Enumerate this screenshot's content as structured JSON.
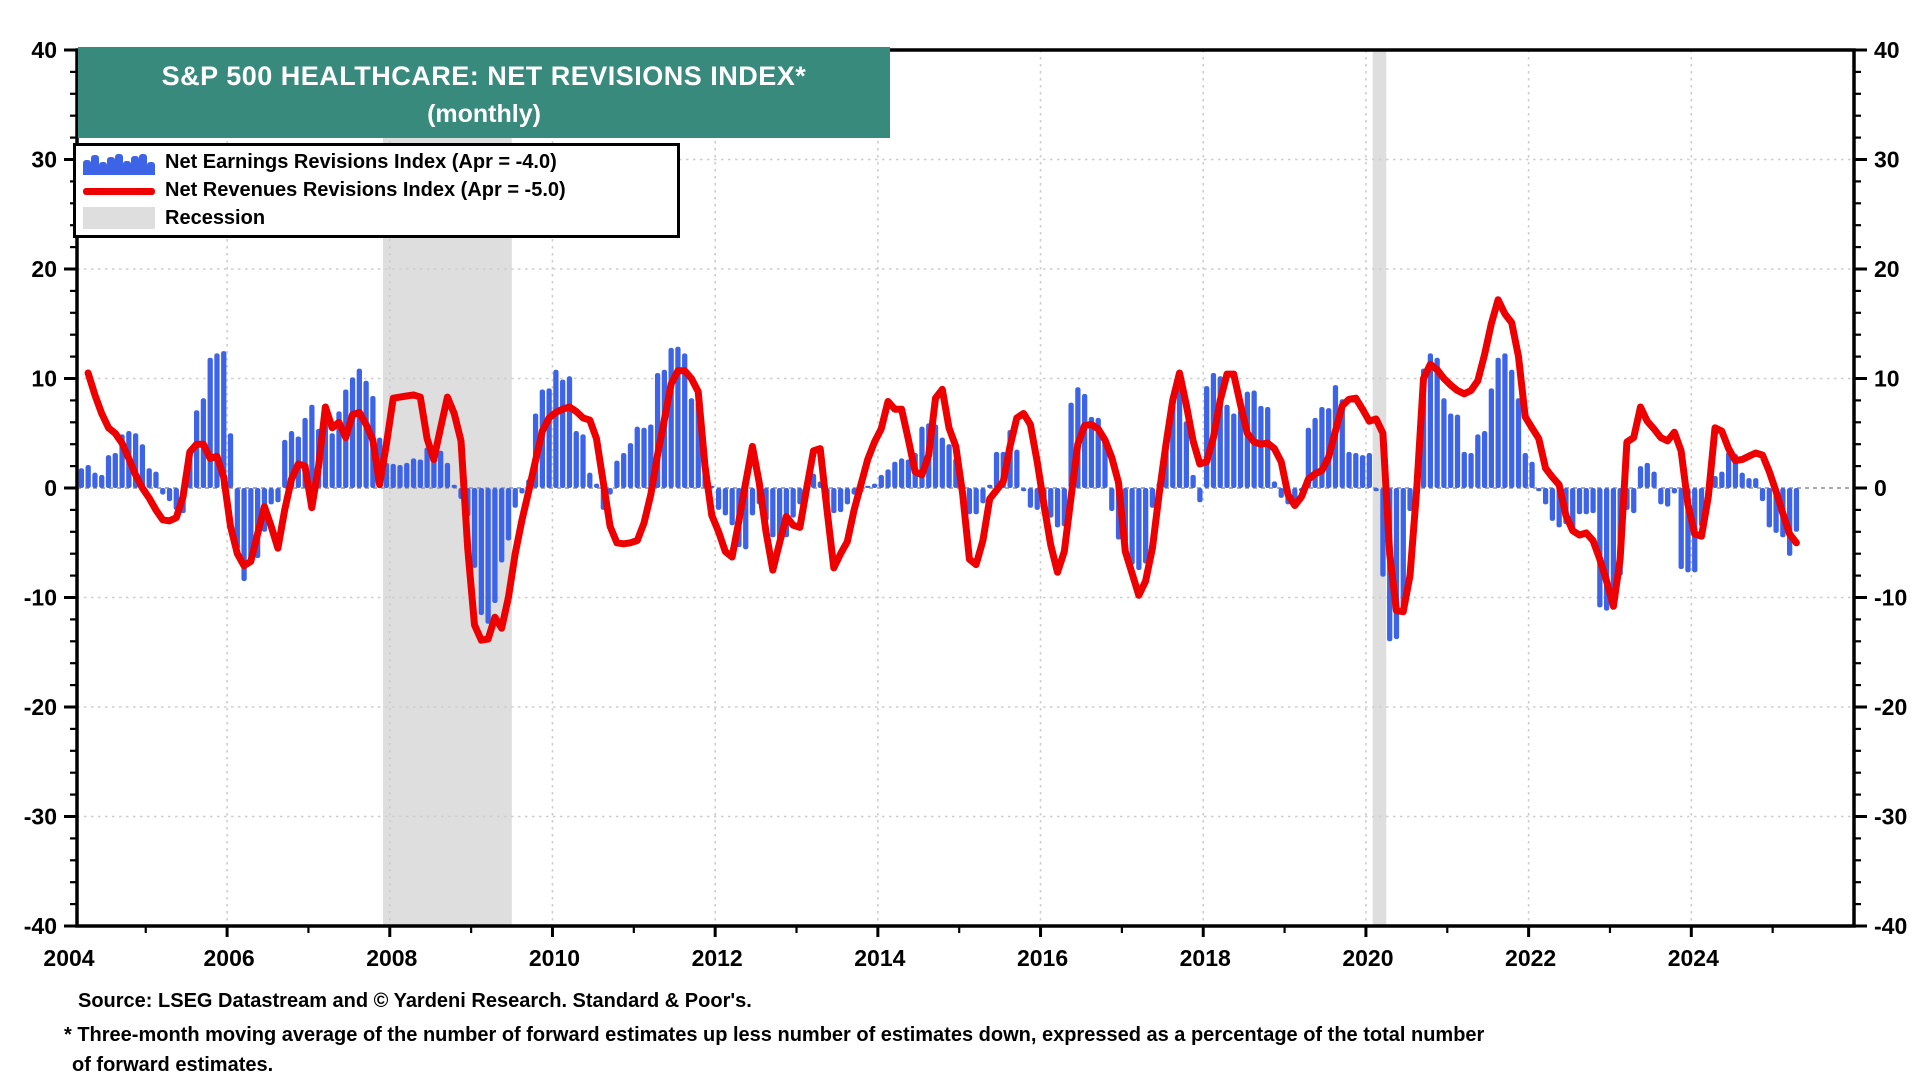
{
  "chart_data": {
    "type": "bar+line",
    "title": "S&P 500 HEALTHCARE: NET REVISIONS INDEX*",
    "subtitle": "(monthly)",
    "start_month": "2004-01",
    "end_month": "2025-04",
    "colors": {
      "bars": "#3D63E6",
      "line": "#EF0000",
      "recession_band": "#DEDEDE",
      "title_bg": "#388A7D",
      "grid": "#CDCDCD",
      "zero_line": "#A0A0A0",
      "frame": "#000000"
    },
    "axis": {
      "ylim": [
        -40,
        40
      ],
      "ytick_labels": [
        40,
        30,
        20,
        10,
        0,
        -10,
        -20,
        -30,
        -40
      ],
      "yminor_step": 2,
      "ymajor_step": 10,
      "xlabel_years": [
        2004,
        2006,
        2008,
        2010,
        2012,
        2014,
        2016,
        2018,
        2020,
        2022,
        2024
      ],
      "xgrid_years": [
        2006,
        2008,
        2010,
        2012,
        2014,
        2016,
        2018,
        2020,
        2022,
        2024
      ],
      "months_domain": 264
    },
    "legend": [
      {
        "label": "Net Earnings Revisions Index (Apr  = -4.0)",
        "type": "bar",
        "color": "#3D63E6"
      },
      {
        "label": "Net Revenues Revisions Index (Apr  = -5.0)",
        "type": "line",
        "color": "#EF0000"
      },
      {
        "label": "Recession",
        "type": "band",
        "color": "#DEDEDE"
      }
    ],
    "latest": {
      "month": "Apr",
      "earnings": -4.0,
      "revenues": -5.0
    },
    "recession_bands_months": [
      [
        47,
        66
      ],
      [
        193,
        195
      ]
    ],
    "series": {
      "earnings_monthly": [
        null,
        null,
        1.8,
        2.1,
        1.4,
        1.2,
        3.0,
        3.2,
        4.9,
        5.2,
        5.0,
        4.0,
        1.8,
        1.5,
        -0.6,
        -1.2,
        -2.0,
        -2.3,
        2.9,
        7.1,
        8.2,
        11.9,
        12.3,
        12.5,
        5.0,
        -5.6,
        -8.5,
        -6.6,
        -6.4,
        -4.0,
        -1.5,
        -1.3,
        4.4,
        5.2,
        4.7,
        6.4,
        7.6,
        5.4,
        6.3,
        5.0,
        7.0,
        9.0,
        10.1,
        10.9,
        9.8,
        8.4,
        4.6,
        2.3,
        2.2,
        2.1,
        2.3,
        2.7,
        2.6,
        3.7,
        3.5,
        3.4,
        2.3,
        0.3,
        -1.0,
        -2.6,
        -7.3,
        -11.6,
        -12.4,
        -10.5,
        -6.8,
        -4.8,
        -1.8,
        -0.5,
        0.8,
        6.8,
        9.0,
        9.1,
        10.8,
        9.9,
        10.2,
        5.2,
        4.9,
        1.4,
        0.4,
        -2.0,
        -0.6,
        2.5,
        3.2,
        4.1,
        5.6,
        5.5,
        5.8,
        10.5,
        10.8,
        12.8,
        12.9,
        12.3,
        8.2,
        7.9,
        2.7,
        0.2,
        -2.0,
        -2.5,
        -3.4,
        -5.4,
        -5.6,
        -2.5,
        -1.5,
        -3.0,
        -4.5,
        -4.8,
        -4.5,
        -2.7,
        -1.5,
        0.5,
        1.3,
        0.6,
        -1.8,
        -2.3,
        -2.2,
        -1.5,
        -0.6,
        -0.4,
        0.2,
        0.4,
        1.2,
        1.7,
        2.4,
        2.7,
        2.6,
        3.2,
        5.6,
        5.9,
        5.8,
        4.6,
        4.0,
        2.7,
        -1.2,
        -2.4,
        -2.4,
        -1.4,
        0.3,
        3.3,
        3.3,
        5.3,
        3.5,
        -0.3,
        -1.8,
        -2.0,
        -2.3,
        -2.7,
        -3.6,
        -3.5,
        7.8,
        9.2,
        8.6,
        6.5,
        6.4,
        4.3,
        -2.1,
        -4.7,
        -5.0,
        -7.0,
        -7.5,
        -6.9,
        -1.8,
        0.5,
        3.5,
        8.0,
        10.0,
        6.1,
        1.2,
        -1.3,
        9.3,
        10.5,
        10.2,
        7.6,
        6.8,
        7.1,
        8.8,
        8.9,
        7.5,
        7.4,
        0.6,
        -0.9,
        -1.5,
        -1.4,
        -0.3,
        5.5,
        6.4,
        7.4,
        7.3,
        9.4,
        8.1,
        3.3,
        3.2,
        3.0,
        3.2,
        -0.3,
        -8.1,
        -14.0,
        -13.8,
        -11.5,
        -2.1,
        0.3,
        10.9,
        12.3,
        11.9,
        8.2,
        6.8,
        6.7,
        3.3,
        3.2,
        4.9,
        5.2,
        9.1,
        11.9,
        12.3,
        10.8,
        8.2,
        3.2,
        2.4,
        -0.3,
        -1.5,
        -3.0,
        -3.6,
        -3.3,
        -4.0,
        -2.4,
        -2.4,
        -2.3,
        -10.9,
        -11.2,
        -11.0,
        -8.0,
        -2.0,
        -2.3,
        2.0,
        2.3,
        1.5,
        -1.5,
        -1.7,
        -0.5,
        -7.4,
        -7.7,
        -7.7,
        -3.5,
        -0.5,
        1.1,
        1.5,
        3.3,
        3.1,
        1.4,
        0.9,
        0.9,
        -1.2,
        -3.6,
        -4.1,
        -4.5,
        -6.2,
        -4.0
      ],
      "revenues_monthly": [
        null,
        null,
        null,
        10.5,
        8.5,
        6.8,
        5.5,
        5.0,
        4.1,
        2.7,
        1.2,
        0.0,
        -0.9,
        -2.0,
        -2.9,
        -3.0,
        -2.7,
        -0.8,
        3.3,
        4.0,
        4.0,
        2.7,
        2.9,
        1.0,
        -3.5,
        -6.0,
        -7.1,
        -6.7,
        -4.2,
        -1.7,
        -3.5,
        -5.5,
        -2.0,
        0.8,
        2.2,
        2.0,
        -1.8,
        2.0,
        7.4,
        5.5,
        6.0,
        4.6,
        6.7,
        6.9,
        5.8,
        4.4,
        0.3,
        4.0,
        8.2,
        8.3,
        8.4,
        8.5,
        8.3,
        4.5,
        2.6,
        5.5,
        8.3,
        6.8,
        4.3,
        -5.5,
        -12.5,
        -13.9,
        -13.8,
        -11.8,
        -12.8,
        -10.0,
        -6.0,
        -2.9,
        -0.3,
        2.5,
        5.2,
        6.4,
        6.9,
        7.2,
        7.4,
        7.0,
        6.4,
        6.2,
        4.5,
        0.5,
        -3.5,
        -5.0,
        -5.1,
        -5.0,
        -4.8,
        -3.2,
        -0.6,
        3.0,
        6.2,
        9.5,
        10.7,
        10.7,
        10.0,
        8.8,
        2.0,
        -2.5,
        -4.0,
        -5.8,
        -6.3,
        -3.0,
        0.5,
        3.8,
        0.5,
        -4.0,
        -7.5,
        -5.0,
        -2.6,
        -3.4,
        -3.6,
        0.0,
        3.4,
        3.6,
        -2.0,
        -7.3,
        -6.0,
        -4.9,
        -2.0,
        0.3,
        2.6,
        4.2,
        5.4,
        7.9,
        7.2,
        7.2,
        4.4,
        1.5,
        1.2,
        3.0,
        8.2,
        9.0,
        5.5,
        3.8,
        -0.5,
        -6.5,
        -7.0,
        -4.8,
        -1.0,
        -0.2,
        0.6,
        3.8,
        6.4,
        6.8,
        5.8,
        2.4,
        -1.5,
        -5.2,
        -7.7,
        -5.8,
        -0.8,
        4.0,
        5.7,
        5.8,
        5.4,
        4.4,
        2.8,
        0.5,
        -5.8,
        -7.8,
        -9.8,
        -8.5,
        -5.5,
        -0.5,
        4.0,
        8.0,
        10.5,
        7.6,
        4.3,
        2.2,
        2.4,
        4.6,
        8.0,
        10.4,
        10.4,
        7.6,
        5.0,
        4.2,
        4.0,
        4.1,
        3.6,
        2.4,
        -0.6,
        -1.6,
        -0.8,
        0.8,
        1.3,
        1.6,
        2.8,
        5.2,
        7.5,
        8.1,
        8.2,
        7.2,
        6.1,
        6.3,
        5.0,
        -6.0,
        -11.2,
        -11.3,
        -8.0,
        0.0,
        10.0,
        11.3,
        10.8,
        10.0,
        9.4,
        8.9,
        8.6,
        8.9,
        9.8,
        12.2,
        15.0,
        17.2,
        15.9,
        15.1,
        12.0,
        6.5,
        5.5,
        4.5,
        1.8,
        1.0,
        0.3,
        -2.5,
        -3.9,
        -4.3,
        -4.1,
        -4.8,
        -6.5,
        -8.5,
        -10.8,
        -6.5,
        4.2,
        4.6,
        7.4,
        6.1,
        5.4,
        4.6,
        4.3,
        5.1,
        3.4,
        -1.5,
        -4.2,
        -4.4,
        -0.8,
        5.5,
        5.2,
        3.6,
        2.5,
        2.6,
        2.9,
        3.2,
        3.0,
        1.5,
        -0.3,
        -2.3,
        -4.2,
        -5.0
      ]
    }
  },
  "footer": {
    "source": "Source: LSEG Datastream and © Yardeni Research. Standard & Poor's.",
    "note1": "* Three-month moving average of the number of forward estimates up less number of estimates down, expressed as a percentage of the total number",
    "note2": " of forward estimates."
  }
}
